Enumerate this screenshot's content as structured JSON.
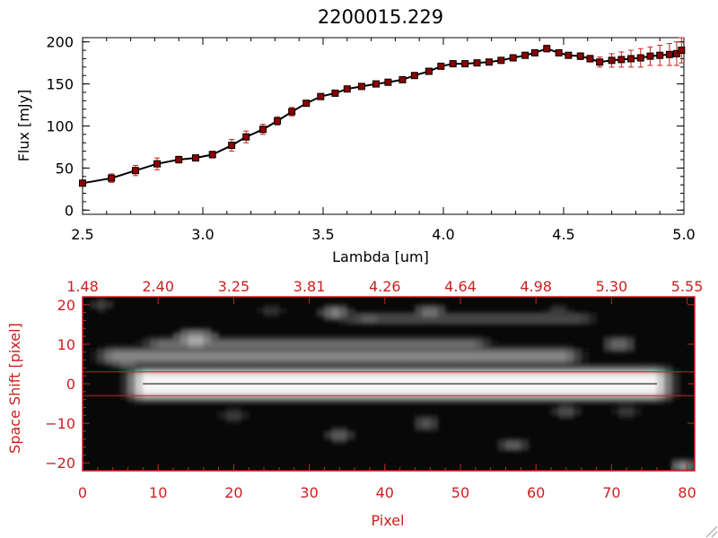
{
  "chart_data": [
    {
      "type": "line",
      "title": "2200015.229",
      "xlabel": "Lambda [um]",
      "ylabel": "Flux [mJy]",
      "xlim": [
        2.5,
        5.0
      ],
      "ylim": [
        -5,
        205
      ],
      "xticks": [
        2.5,
        3.0,
        3.5,
        4.0,
        4.5,
        5.0
      ],
      "xtick_labels": [
        "2.5",
        "3.0",
        "3.5",
        "4.0",
        "4.5",
        "5.0"
      ],
      "yticks": [
        0,
        50,
        100,
        150,
        200
      ],
      "ytick_labels": [
        "0",
        "50",
        "100",
        "150",
        "200"
      ],
      "grid": false,
      "marker": "square",
      "line_color": "#000000",
      "marker_color": "#8b0000",
      "errorbar_color": "#cc2020",
      "series": [
        {
          "x": [
            2.5,
            2.62,
            2.72,
            2.81,
            2.9,
            2.97,
            3.04,
            3.12,
            3.18,
            3.25,
            3.31,
            3.37,
            3.43,
            3.49,
            3.55,
            3.6,
            3.66,
            3.72,
            3.77,
            3.83,
            3.88,
            3.94,
            3.99,
            4.04,
            4.09,
            4.14,
            4.19,
            4.24,
            4.29,
            4.34,
            4.38,
            4.43,
            4.48,
            4.52,
            4.57,
            4.61,
            4.65,
            4.7,
            4.74,
            4.78,
            4.82,
            4.86,
            4.9,
            4.94,
            4.97,
            4.99
          ],
          "y": [
            32,
            38,
            47,
            55,
            60,
            62,
            66,
            77,
            87,
            96,
            106,
            117,
            127,
            135,
            139,
            144,
            147,
            150,
            152,
            155,
            160,
            165,
            171,
            174,
            174,
            175,
            176,
            178,
            181,
            184,
            187,
            192,
            187,
            184,
            183,
            180,
            176,
            178,
            179,
            180,
            181,
            183,
            184,
            185,
            186,
            190
          ],
          "err": [
            3,
            5,
            6,
            7,
            4,
            3,
            4,
            7,
            7,
            6,
            5,
            5,
            3,
            3,
            3,
            3,
            3,
            3,
            3,
            3,
            3,
            3,
            3,
            3,
            3,
            3,
            3,
            3,
            3,
            3,
            3,
            4,
            3,
            3,
            4,
            4,
            6,
            8,
            9,
            10,
            11,
            11,
            12,
            13,
            14,
            15
          ]
        }
      ]
    },
    {
      "type": "heatmap",
      "xlabel": "Pixel",
      "ylabel": "Space Shift [pixel]",
      "xlim": [
        0,
        81
      ],
      "ylim": [
        -22,
        22
      ],
      "xticks": [
        0,
        10,
        20,
        30,
        40,
        50,
        60,
        70,
        80
      ],
      "xtick_labels": [
        "0",
        "10",
        "20",
        "30",
        "40",
        "50",
        "60",
        "70",
        "80"
      ],
      "yticks": [
        -20,
        -10,
        0,
        10,
        20
      ],
      "ytick_labels": [
        "−20",
        "−10",
        "0",
        "10",
        "20"
      ],
      "top_tick_labels": [
        "1.48",
        "2.40",
        "3.25",
        "3.81",
        "4.26",
        "4.64",
        "4.98",
        "5.30",
        "5.55"
      ],
      "extraction_lines": [
        3,
        -3
      ],
      "center_line": 0,
      "axis_color": "#cc2020",
      "colormap": "grayscale",
      "background_value": 0.03,
      "features": [
        {
          "type": "trace",
          "x0": 8,
          "x1": 76,
          "y": 0,
          "half_width": 4.8,
          "core": 2.2,
          "value": 0.96
        },
        {
          "type": "trace",
          "x0": 4,
          "x1": 64,
          "y": 7,
          "half_width": 2.6,
          "core": 1.0,
          "value": 0.52
        },
        {
          "type": "trace",
          "x0": 10,
          "x1": 52,
          "y": 10,
          "half_width": 2.0,
          "core": 0.8,
          "value": 0.42
        },
        {
          "type": "trace",
          "x0": 36,
          "x1": 66,
          "y": 16.5,
          "half_width": 2.0,
          "core": 0.8,
          "value": 0.28
        },
        {
          "type": "blob",
          "x": 15,
          "y": 11,
          "r": 3.2,
          "value": 0.78
        },
        {
          "type": "blob",
          "x": 6,
          "y": 6,
          "r": 2.6,
          "value": 0.55
        },
        {
          "type": "blob",
          "x": 33.5,
          "y": 18,
          "r": 2.2,
          "value": 0.6
        },
        {
          "type": "blob",
          "x": 46,
          "y": 18,
          "r": 2.4,
          "value": 0.55
        },
        {
          "type": "blob",
          "x": 71,
          "y": 10,
          "r": 2.4,
          "value": 0.5
        },
        {
          "type": "blob",
          "x": 38,
          "y": 16.5,
          "r": 2.0,
          "value": 0.45
        },
        {
          "type": "blob",
          "x": 34,
          "y": -13,
          "r": 2.0,
          "value": 0.45
        },
        {
          "type": "blob",
          "x": 45.5,
          "y": -10,
          "r": 2.0,
          "value": 0.4
        },
        {
          "type": "blob",
          "x": 57,
          "y": -15.5,
          "r": 2.0,
          "value": 0.45
        },
        {
          "type": "blob",
          "x": 79.5,
          "y": -21,
          "r": 2.0,
          "value": 0.65
        },
        {
          "type": "blob",
          "x": 64,
          "y": -7,
          "r": 1.8,
          "value": 0.4
        },
        {
          "type": "blob",
          "x": 72,
          "y": -7,
          "r": 1.6,
          "value": 0.3
        },
        {
          "type": "blob",
          "x": 20,
          "y": -8,
          "r": 1.8,
          "value": 0.3
        },
        {
          "type": "blob",
          "x": 25,
          "y": 18.5,
          "r": 1.8,
          "value": 0.25
        },
        {
          "type": "blob",
          "x": 63,
          "y": 18.5,
          "r": 1.8,
          "value": 0.28
        },
        {
          "type": "blob",
          "x": 2.5,
          "y": 20,
          "r": 1.8,
          "value": 0.3
        }
      ]
    }
  ]
}
